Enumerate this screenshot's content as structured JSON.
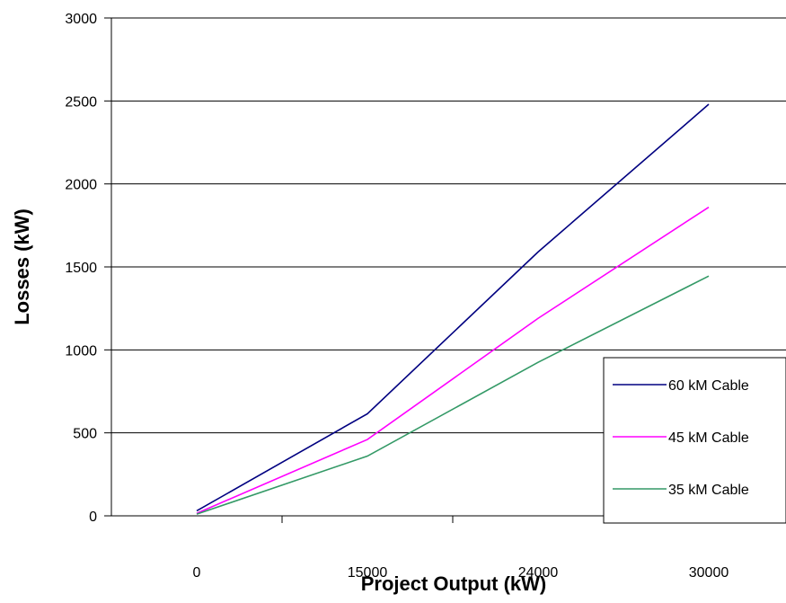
{
  "chart_data": {
    "type": "line",
    "categories": [
      "0",
      "15000",
      "24000",
      "30000"
    ],
    "series": [
      {
        "name": "60 kM Cable",
        "color": "#000080",
        "values": [
          30,
          615,
          1590,
          2480
        ]
      },
      {
        "name": "45 kM Cable",
        "color": "#ff00ff",
        "values": [
          15,
          460,
          1190,
          1860
        ]
      },
      {
        "name": "35 kM Cable",
        "color": "#339966",
        "values": [
          10,
          360,
          925,
          1445
        ]
      }
    ],
    "title": "",
    "xlabel": "Project Output (kW)",
    "ylabel": "Losses (kW)",
    "ylim": [
      0,
      3000
    ],
    "yticks": [
      "0",
      "500",
      "1000",
      "1500",
      "2000",
      "2500",
      "3000"
    ],
    "grid": "horizontal",
    "legend_position": "right"
  }
}
